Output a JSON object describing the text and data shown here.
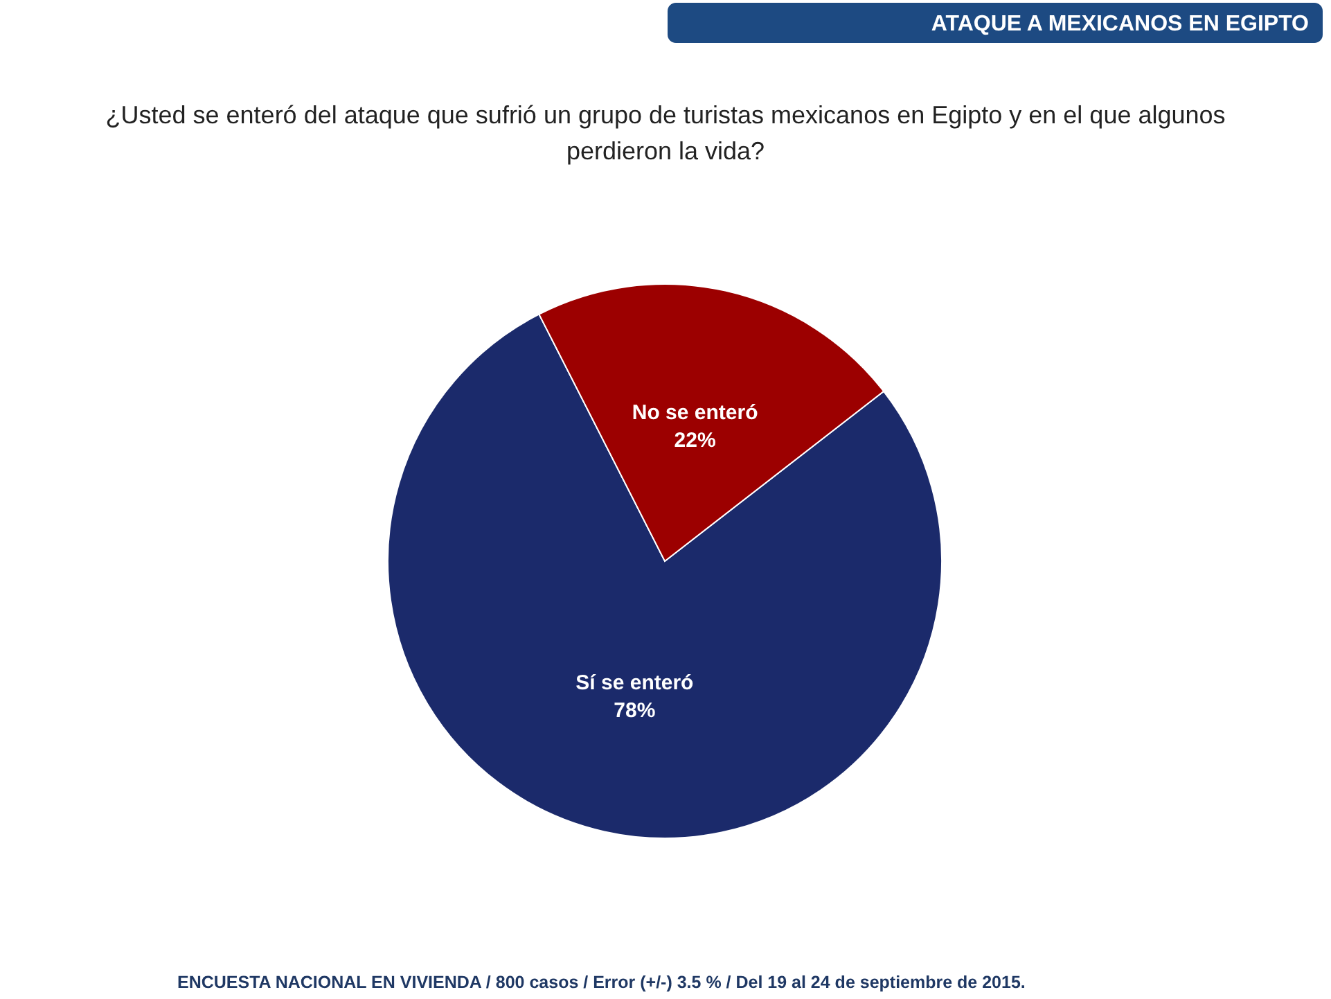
{
  "chart_data": {
    "type": "pie",
    "title": "ATAQUE A MEXICANOS EN EGIPTO",
    "subtitle": "¿Usted se enteró del ataque que sufrió un grupo de turistas mexicanos en Egipto y en el que algunos perdieron la vida?",
    "categories": [
      "Sí se enteró",
      "No se enteró"
    ],
    "values": [
      78,
      22
    ],
    "colors": [
      "#1b2a6b",
      "#9c0000"
    ],
    "value_labels": [
      "78%",
      "22%"
    ],
    "annotations": [
      "ENCUESTA NACIONAL EN VIVIENDA / 800 casos / Error (+/-) 3.5 % / Del 19 al 24 de septiembre de 2015."
    ]
  }
}
